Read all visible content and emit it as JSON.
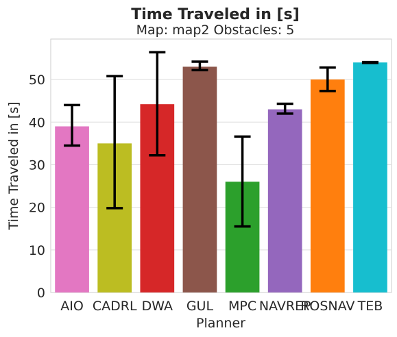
{
  "chart_data": {
    "type": "bar",
    "title": "Time Traveled in [s]",
    "subtitle": "Map: map2 Obstacles: 5",
    "xlabel": "Planner",
    "ylabel": "Time Traveled in [s]",
    "ylim": [
      0,
      59.5
    ],
    "yticks": [
      0,
      10,
      20,
      30,
      40,
      50
    ],
    "grid": "horizontal",
    "categories": [
      "AIO",
      "CADRL",
      "DWA",
      "GUL",
      "MPC",
      "NAVREP",
      "ROSNAV",
      "TEB"
    ],
    "values": [
      39.0,
      35.0,
      44.2,
      53.0,
      26.0,
      43.0,
      50.0,
      54.0
    ],
    "error_low": [
      34.5,
      19.8,
      32.2,
      52.2,
      15.5,
      42.0,
      47.3,
      53.9
    ],
    "error_high": [
      44.0,
      50.8,
      56.4,
      54.2,
      36.6,
      44.3,
      52.8,
      54.1
    ],
    "colors": [
      "#e377c2",
      "#bcbd22",
      "#d62728",
      "#8c564b",
      "#2ca02c",
      "#9467bd",
      "#ff7f0e",
      "#17becf"
    ]
  }
}
